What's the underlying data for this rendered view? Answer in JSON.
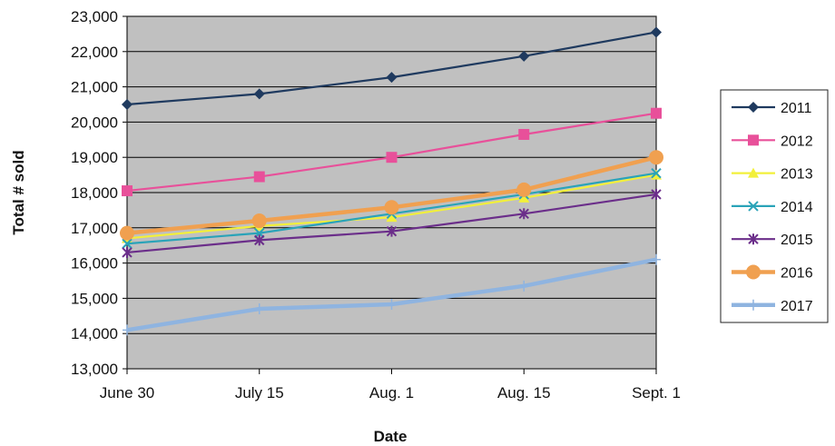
{
  "chart_data": {
    "type": "line",
    "title": "",
    "xlabel": "Date",
    "ylabel": "Total # sold",
    "categories": [
      "June 30",
      "July 15",
      "Aug. 1",
      "Aug. 15",
      "Sept. 1"
    ],
    "ylim": [
      13000,
      23000
    ],
    "ytick_step": 1000,
    "yticks": [
      "13,000",
      "14,000",
      "15,000",
      "16,000",
      "17,000",
      "18,000",
      "19,000",
      "20,000",
      "21,000",
      "22,000",
      "23,000"
    ],
    "grid": true,
    "plot_background": "#c0c0c0",
    "legend_placement": "right",
    "series": [
      {
        "name": "2011",
        "values": [
          20500,
          20800,
          21270,
          21870,
          22550
        ],
        "color": "#1f3a5f",
        "marker": "diamond"
      },
      {
        "name": "2012",
        "values": [
          18050,
          18450,
          19000,
          19650,
          20250
        ],
        "color": "#e8509a",
        "marker": "square"
      },
      {
        "name": "2013",
        "values": [
          16700,
          17050,
          17300,
          17850,
          18500
        ],
        "color": "#f2f03a",
        "marker": "triangle"
      },
      {
        "name": "2014",
        "values": [
          16550,
          16850,
          17400,
          17950,
          18550
        ],
        "color": "#2aa3b8",
        "marker": "x"
      },
      {
        "name": "2015",
        "values": [
          16300,
          16650,
          16900,
          17400,
          17950
        ],
        "color": "#6b2e8a",
        "marker": "star"
      },
      {
        "name": "2016",
        "values": [
          16850,
          17200,
          17580,
          18080,
          19000
        ],
        "color": "#f0a050",
        "marker": "circle"
      },
      {
        "name": "2017",
        "values": [
          14100,
          14700,
          14830,
          15350,
          16100
        ],
        "color": "#8fb4e0",
        "marker": "plus"
      }
    ]
  }
}
